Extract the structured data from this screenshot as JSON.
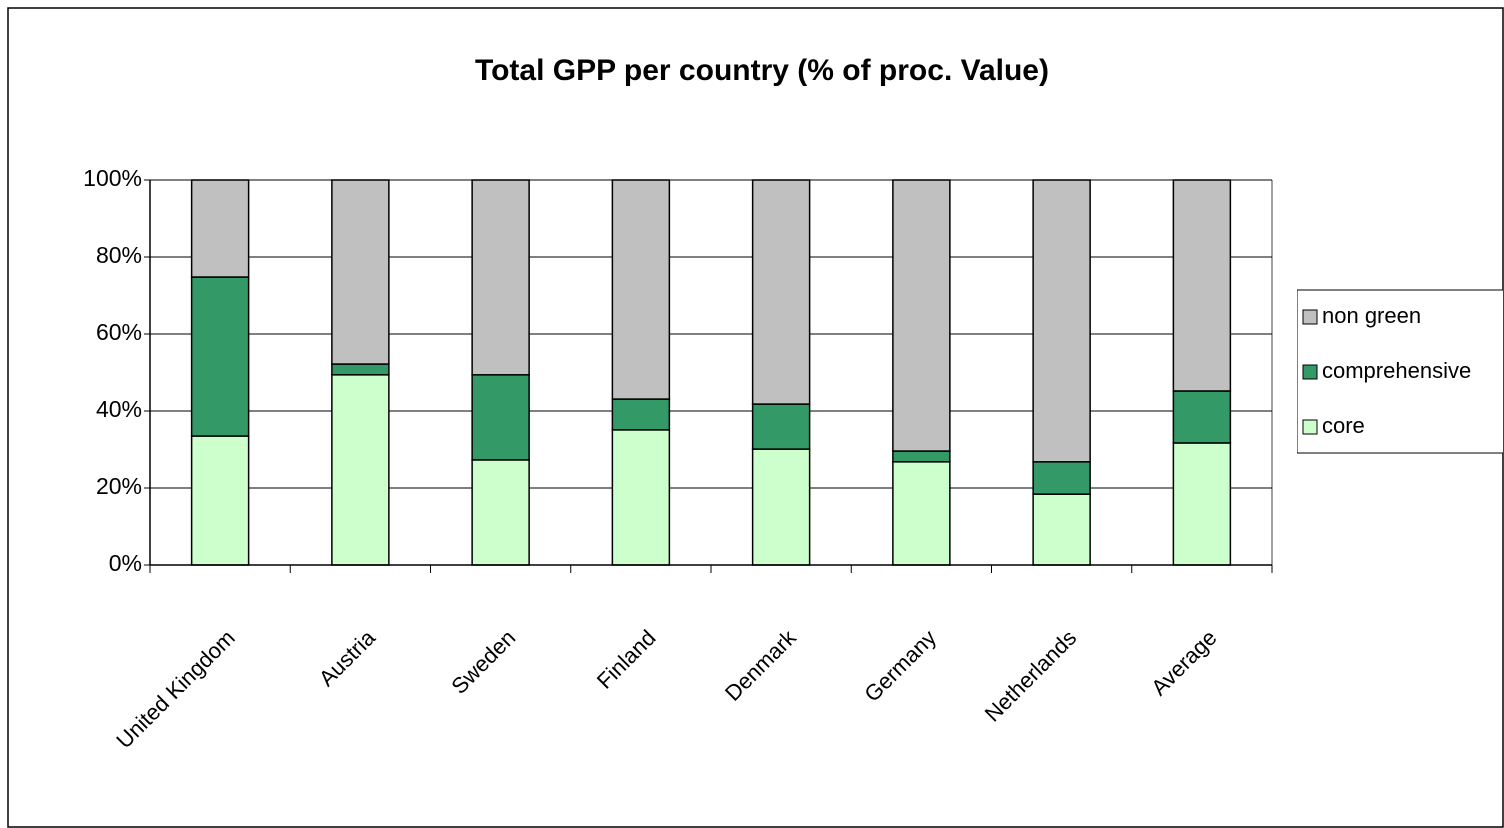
{
  "chart_data": {
    "type": "stacked_bar",
    "title": "Total GPP per country (% of proc. Value)",
    "categories": [
      "United Kingdom",
      "Austria",
      "Sweden",
      "Finland",
      "Denmark",
      "Germany",
      "Netherlands",
      "Average"
    ],
    "series": [
      {
        "name": "core",
        "color": "#ccffcc",
        "values": [
          33.5,
          49.4,
          27.3,
          35.1,
          30.1,
          26.8,
          18.4,
          31.7
        ]
      },
      {
        "name": "comprehensive",
        "color": "#339966",
        "values": [
          41.3,
          2.8,
          22.1,
          8.0,
          11.7,
          2.8,
          8.4,
          13.5
        ]
      },
      {
        "name": "non green",
        "color": "#c0c0c0",
        "values": [
          25.2,
          47.8,
          50.6,
          56.9,
          58.2,
          70.4,
          73.2,
          54.8
        ]
      }
    ],
    "ylim": [
      0,
      100
    ],
    "yticks": [
      {
        "value": 0,
        "label": "0%"
      },
      {
        "value": 20,
        "label": "20%"
      },
      {
        "value": 40,
        "label": "40%"
      },
      {
        "value": 60,
        "label": "60%"
      },
      {
        "value": 80,
        "label": "80%"
      },
      {
        "value": 100,
        "label": "100%"
      }
    ],
    "grid": true,
    "legend": "right"
  }
}
